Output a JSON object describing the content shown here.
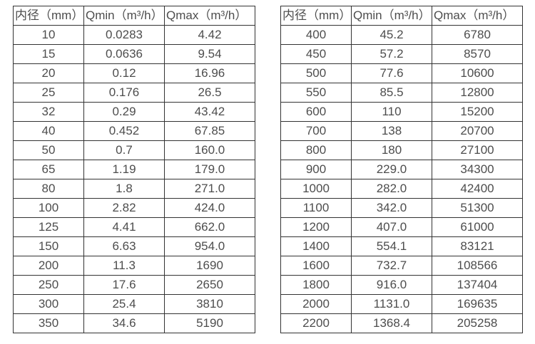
{
  "page": {
    "background_color": "#ffffff",
    "border_color": "#333333",
    "text_color": "#4d4d4d"
  },
  "tables": [
    {
      "name": "flow-table-small-diameters",
      "headers": [
        "内径（mm）",
        "Qmin（m³/h）",
        "Qmax（m³/h）"
      ],
      "rows": [
        [
          "10",
          "0.0283",
          "4.42"
        ],
        [
          "15",
          "0.0636",
          "9.54"
        ],
        [
          "20",
          "0.12",
          "16.96"
        ],
        [
          "25",
          "0.176",
          "26.5"
        ],
        [
          "32",
          "0.29",
          "43.42"
        ],
        [
          "40",
          "0.452",
          "67.85"
        ],
        [
          "50",
          "0.7",
          "160.0"
        ],
        [
          "65",
          "1.19",
          "179.0"
        ],
        [
          "80",
          "1.8",
          "271.0"
        ],
        [
          "100",
          "2.82",
          "424.0"
        ],
        [
          "125",
          "4.41",
          "662.0"
        ],
        [
          "150",
          "6.63",
          "954.0"
        ],
        [
          "200",
          "11.3",
          "1690"
        ],
        [
          "250",
          "17.6",
          "2650"
        ],
        [
          "300",
          "25.4",
          "3810"
        ],
        [
          "350",
          "34.6",
          "5190"
        ]
      ]
    },
    {
      "name": "flow-table-large-diameters",
      "headers": [
        "内径（mm）",
        "Qmin（m³/h）",
        "Qmax（m³/h）"
      ],
      "rows": [
        [
          "400",
          "45.2",
          "6780"
        ],
        [
          "450",
          "57.2",
          "8570"
        ],
        [
          "500",
          "77.6",
          "10600"
        ],
        [
          "550",
          "85.5",
          "12800"
        ],
        [
          "600",
          "110",
          "15200"
        ],
        [
          "700",
          "138",
          "20700"
        ],
        [
          "800",
          "180",
          "27100"
        ],
        [
          "900",
          "229.0",
          "34300"
        ],
        [
          "1000",
          "282.0",
          "42400"
        ],
        [
          "1100",
          "342.0",
          "51300"
        ],
        [
          "1200",
          "407.0",
          "61000"
        ],
        [
          "1400",
          "554.1",
          "83121"
        ],
        [
          "1600",
          "732.7",
          "108566"
        ],
        [
          "1800",
          "916.0",
          "137404"
        ],
        [
          "2000",
          "1131.0",
          "169635"
        ],
        [
          "2200",
          "1368.4",
          "205258"
        ]
      ]
    }
  ]
}
